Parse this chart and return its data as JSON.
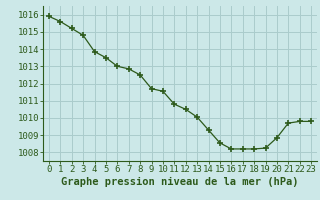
{
  "x": [
    0,
    1,
    2,
    3,
    4,
    5,
    6,
    7,
    8,
    9,
    10,
    11,
    12,
    13,
    14,
    15,
    16,
    17,
    18,
    19,
    20,
    21,
    22,
    23
  ],
  "y": [
    1015.9,
    1015.6,
    1015.2,
    1014.8,
    1013.85,
    1013.5,
    1013.0,
    1012.85,
    1012.5,
    1011.7,
    1011.55,
    1010.8,
    1010.5,
    1010.05,
    1009.3,
    1008.55,
    1008.2,
    1008.2,
    1008.2,
    1008.25,
    1008.85,
    1009.7,
    1009.8,
    1009.8
  ],
  "line_color": "#2d5a1b",
  "marker_color": "#2d5a1b",
  "bg_color": "#cce8e8",
  "grid_color": "#aacccc",
  "axis_color": "#2d5a1b",
  "xlabel": "Graphe pression niveau de la mer (hPa)",
  "ylim": [
    1007.5,
    1016.5
  ],
  "xlim": [
    -0.5,
    23.5
  ],
  "yticks": [
    1008,
    1009,
    1010,
    1011,
    1012,
    1013,
    1014,
    1015,
    1016
  ],
  "xticks": [
    0,
    1,
    2,
    3,
    4,
    5,
    6,
    7,
    8,
    9,
    10,
    11,
    12,
    13,
    14,
    15,
    16,
    17,
    18,
    19,
    20,
    21,
    22,
    23
  ],
  "xlabel_fontsize": 7.5,
  "tick_fontsize": 6.5,
  "xlabel_bold": true
}
